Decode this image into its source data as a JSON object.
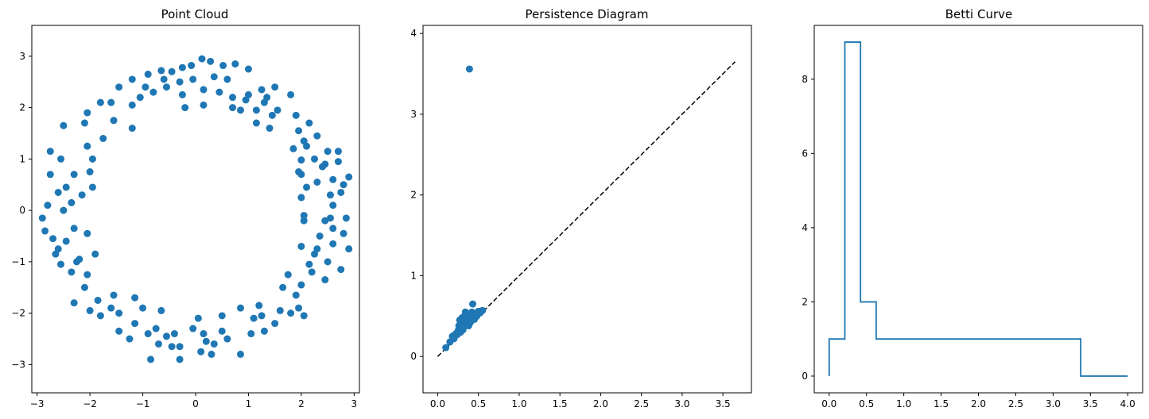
{
  "chart_data": [
    {
      "type": "scatter",
      "title": "Point Cloud",
      "xlabel": "",
      "ylabel": "",
      "xlim": [
        -3.1,
        3.1
      ],
      "ylim": [
        -3.55,
        3.6
      ],
      "xticks": [
        -3,
        -2,
        -1,
        0,
        1,
        2,
        3
      ],
      "yticks": [
        -3,
        -2,
        -1,
        0,
        1,
        2,
        3
      ],
      "grid": false,
      "color": "#1f77b4",
      "points": [
        [
          0.12,
          2.95
        ],
        [
          0.28,
          2.9
        ],
        [
          0.52,
          2.82
        ],
        [
          0.75,
          2.85
        ],
        [
          1.0,
          2.75
        ],
        [
          -0.08,
          2.82
        ],
        [
          -0.25,
          2.78
        ],
        [
          -0.45,
          2.7
        ],
        [
          -0.65,
          2.72
        ],
        [
          -0.9,
          2.65
        ],
        [
          -1.2,
          2.55
        ],
        [
          -1.45,
          2.4
        ],
        [
          0.35,
          2.6
        ],
        [
          0.6,
          2.55
        ],
        [
          -0.3,
          2.5
        ],
        [
          -0.55,
          2.4
        ],
        [
          -0.8,
          2.3
        ],
        [
          -1.05,
          2.2
        ],
        [
          0.15,
          2.35
        ],
        [
          0.45,
          2.3
        ],
        [
          0.7,
          2.2
        ],
        [
          0.95,
          2.15
        ],
        [
          1.25,
          2.35
        ],
        [
          1.5,
          2.4
        ],
        [
          1.3,
          2.1
        ],
        [
          1.55,
          1.95
        ],
        [
          1.8,
          2.25
        ],
        [
          -1.2,
          2.05
        ],
        [
          -1.55,
          1.75
        ],
        [
          -1.8,
          2.1
        ],
        [
          -2.05,
          1.9
        ],
        [
          -2.1,
          1.7
        ],
        [
          -1.2,
          1.6
        ],
        [
          0.15,
          2.05
        ],
        [
          0.85,
          1.95
        ],
        [
          1.15,
          1.7
        ],
        [
          1.4,
          1.6
        ],
        [
          1.9,
          1.85
        ],
        [
          2.15,
          1.7
        ],
        [
          1.95,
          1.55
        ],
        [
          2.3,
          1.45
        ],
        [
          2.1,
          1.25
        ],
        [
          1.85,
          1.2
        ],
        [
          2.25,
          1.0
        ],
        [
          2.0,
          0.98
        ],
        [
          2.5,
          1.15
        ],
        [
          2.7,
          1.15
        ],
        [
          2.45,
          0.9
        ],
        [
          2.6,
          0.6
        ],
        [
          2.8,
          0.5
        ],
        [
          2.9,
          0.65
        ],
        [
          2.0,
          0.7
        ],
        [
          2.1,
          0.45
        ],
        [
          2.3,
          0.55
        ],
        [
          2.55,
          0.3
        ],
        [
          2.75,
          0.35
        ],
        [
          2.0,
          0.25
        ],
        [
          2.6,
          0.1
        ],
        [
          2.85,
          -0.15
        ],
        [
          2.45,
          -0.2
        ],
        [
          2.05,
          -0.1
        ],
        [
          2.6,
          -0.35
        ],
        [
          2.8,
          -0.45
        ],
        [
          2.35,
          -0.5
        ],
        [
          2.0,
          -0.7
        ],
        [
          2.25,
          -0.85
        ],
        [
          2.6,
          -0.65
        ],
        [
          2.9,
          -0.75
        ],
        [
          2.5,
          -1.0
        ],
        [
          2.2,
          -1.2
        ],
        [
          2.75,
          -1.15
        ],
        [
          2.45,
          -1.35
        ],
        [
          2.0,
          -1.45
        ],
        [
          1.75,
          -1.25
        ],
        [
          1.9,
          -1.65
        ],
        [
          1.8,
          -2.0
        ],
        [
          2.05,
          -2.05
        ],
        [
          1.95,
          -1.9
        ],
        [
          1.6,
          -1.95
        ],
        [
          1.5,
          -2.2
        ],
        [
          1.2,
          -1.85
        ],
        [
          1.1,
          -2.1
        ],
        [
          1.3,
          -2.35
        ],
        [
          1.05,
          -2.4
        ],
        [
          0.85,
          -1.9
        ],
        [
          0.5,
          -2.05
        ],
        [
          0.6,
          -2.5
        ],
        [
          0.35,
          -2.6
        ],
        [
          0.15,
          -2.4
        ],
        [
          -0.05,
          -2.3
        ],
        [
          0.1,
          -2.75
        ],
        [
          0.3,
          -2.8
        ],
        [
          0.85,
          -2.8
        ],
        [
          -0.3,
          -2.65
        ],
        [
          -0.4,
          -2.4
        ],
        [
          -0.55,
          -2.45
        ],
        [
          -0.75,
          -2.3
        ],
        [
          -0.7,
          -2.6
        ],
        [
          -0.9,
          -2.4
        ],
        [
          -1.15,
          -2.2
        ],
        [
          -1.0,
          -1.9
        ],
        [
          -1.25,
          -2.5
        ],
        [
          -1.45,
          -2.35
        ],
        [
          -1.6,
          -1.9
        ],
        [
          -1.55,
          -1.65
        ],
        [
          -1.8,
          -2.05
        ],
        [
          -2.0,
          -1.95
        ],
        [
          -1.85,
          -1.75
        ],
        [
          -2.1,
          -1.5
        ],
        [
          -2.3,
          -1.8
        ],
        [
          -2.05,
          -1.25
        ],
        [
          -2.35,
          -1.2
        ],
        [
          -2.55,
          -1.05
        ],
        [
          -2.65,
          -0.85
        ],
        [
          -2.2,
          -0.95
        ],
        [
          -2.45,
          -0.6
        ],
        [
          -2.7,
          -0.55
        ],
        [
          -2.85,
          -0.4
        ],
        [
          -2.9,
          -0.15
        ],
        [
          -2.3,
          -0.35
        ],
        [
          -2.05,
          -0.45
        ],
        [
          -2.5,
          0.0
        ],
        [
          -2.8,
          0.1
        ],
        [
          -2.35,
          0.15
        ],
        [
          -2.15,
          0.3
        ],
        [
          -1.95,
          0.45
        ],
        [
          -2.45,
          0.45
        ],
        [
          -2.75,
          0.7
        ],
        [
          -2.3,
          0.7
        ],
        [
          -2.0,
          0.75
        ],
        [
          -2.55,
          1.0
        ],
        [
          -2.75,
          1.15
        ],
        [
          -2.05,
          1.25
        ],
        [
          -1.75,
          1.4
        ],
        [
          -2.5,
          1.65
        ],
        [
          -1.6,
          2.1
        ],
        [
          -0.95,
          2.4
        ],
        [
          -0.2,
          2.0
        ],
        [
          0.7,
          2.0
        ],
        [
          1.45,
          1.85
        ],
        [
          1.0,
          2.25
        ],
        [
          -1.45,
          -2.0
        ],
        [
          -0.3,
          -2.9
        ],
        [
          0.5,
          -2.35
        ],
        [
          -0.85,
          -2.9
        ],
        [
          0.05,
          -2.1
        ],
        [
          -0.65,
          -1.95
        ],
        [
          -1.15,
          -1.7
        ],
        [
          1.25,
          -2.05
        ],
        [
          2.15,
          -1.05
        ],
        [
          2.4,
          0.85
        ],
        [
          2.55,
          -0.15
        ],
        [
          -2.25,
          -1.0
        ],
        [
          -1.95,
          1.0
        ],
        [
          -0.05,
          2.55
        ],
        [
          -0.6,
          2.55
        ],
        [
          0.2,
          -2.55
        ],
        [
          1.65,
          -1.5
        ],
        [
          2.05,
          -0.2
        ],
        [
          1.95,
          0.75
        ],
        [
          -2.6,
          -0.75
        ],
        [
          -2.6,
          0.35
        ],
        [
          -1.9,
          -0.85
        ],
        [
          -0.45,
          -2.65
        ],
        [
          1.35,
          2.2
        ],
        [
          2.05,
          1.35
        ],
        [
          -0.25,
          2.25
        ],
        [
          1.15,
          1.95
        ],
        [
          2.7,
          0.95
        ],
        [
          2.3,
          -0.75
        ]
      ]
    },
    {
      "type": "scatter",
      "title": "Persistence Diagram",
      "xlabel": "",
      "ylabel": "",
      "xlim": [
        -0.18,
        3.85
      ],
      "ylim": [
        -0.45,
        4.1
      ],
      "xticks": [
        "0.0",
        "0.5",
        "1.0",
        "1.5",
        "2.0",
        "2.5",
        "3.0",
        "3.5"
      ],
      "yticks": [
        "0",
        "1",
        "2",
        "3",
        "4"
      ],
      "grid": false,
      "color": "#1f77b4",
      "diagonal": [
        0,
        3.65
      ],
      "diagonal_color": "#000000",
      "points": [
        [
          0.39,
          3.56
        ],
        [
          0.1,
          0.11
        ],
        [
          0.15,
          0.18
        ],
        [
          0.2,
          0.22
        ],
        [
          0.18,
          0.25
        ],
        [
          0.22,
          0.28
        ],
        [
          0.25,
          0.32
        ],
        [
          0.28,
          0.3
        ],
        [
          0.26,
          0.38
        ],
        [
          0.3,
          0.35
        ],
        [
          0.32,
          0.4
        ],
        [
          0.35,
          0.42
        ],
        [
          0.3,
          0.48
        ],
        [
          0.33,
          0.5
        ],
        [
          0.36,
          0.47
        ],
        [
          0.38,
          0.52
        ],
        [
          0.4,
          0.45
        ],
        [
          0.42,
          0.55
        ],
        [
          0.44,
          0.5
        ],
        [
          0.46,
          0.53
        ],
        [
          0.5,
          0.56
        ],
        [
          0.55,
          0.57
        ],
        [
          0.43,
          0.65
        ],
        [
          0.34,
          0.55
        ],
        [
          0.27,
          0.45
        ],
        [
          0.38,
          0.38
        ],
        [
          0.45,
          0.46
        ],
        [
          0.48,
          0.5
        ],
        [
          0.24,
          0.27
        ],
        [
          0.31,
          0.33
        ],
        [
          0.4,
          0.42
        ],
        [
          0.52,
          0.54
        ]
      ]
    },
    {
      "type": "line",
      "title": "Betti Curve",
      "xlabel": "",
      "ylabel": "",
      "xlim": [
        -0.2,
        4.2
      ],
      "ylim": [
        -0.45,
        9.45
      ],
      "xticks": [
        "0.0",
        "0.5",
        "1.0",
        "1.5",
        "2.0",
        "2.5",
        "3.0",
        "3.5",
        "4.0"
      ],
      "yticks": [
        "0",
        "2",
        "4",
        "6",
        "8"
      ],
      "grid": false,
      "color": "#1f77b4",
      "steps": [
        [
          0.0,
          0
        ],
        [
          0.0,
          1
        ],
        [
          0.21,
          1
        ],
        [
          0.21,
          9
        ],
        [
          0.42,
          9
        ],
        [
          0.42,
          2
        ],
        [
          0.63,
          2
        ],
        [
          0.63,
          1
        ],
        [
          3.37,
          1
        ],
        [
          3.37,
          0
        ],
        [
          4.0,
          0
        ]
      ]
    }
  ]
}
